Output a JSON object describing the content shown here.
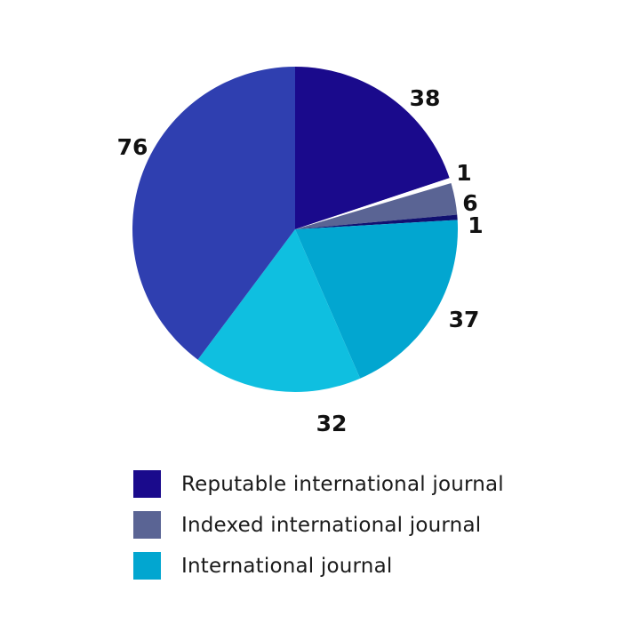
{
  "chart_data": {
    "type": "pie",
    "title": "",
    "slices": [
      {
        "value": 38,
        "label": "38",
        "color": "#1a0a8c"
      },
      {
        "value": 1,
        "label": "1",
        "color": "#ffffff"
      },
      {
        "value": 6,
        "label": "6",
        "color": "#5a6494"
      },
      {
        "value": 1,
        "label": "1",
        "color": "#101070"
      },
      {
        "value": 37,
        "label": "37",
        "color": "#02a6d0"
      },
      {
        "value": 32,
        "label": "32",
        "color": "#0fbfe0"
      },
      {
        "value": 76,
        "label": "76",
        "color": "#2f3fb0"
      }
    ],
    "legend": [
      {
        "label": "Reputable international journal",
        "color": "#1a0a8c"
      },
      {
        "label": "Indexed international journal",
        "color": "#5a6494"
      },
      {
        "label": "International journal",
        "color": "#02a6d0"
      }
    ],
    "legend_position": "bottom"
  }
}
